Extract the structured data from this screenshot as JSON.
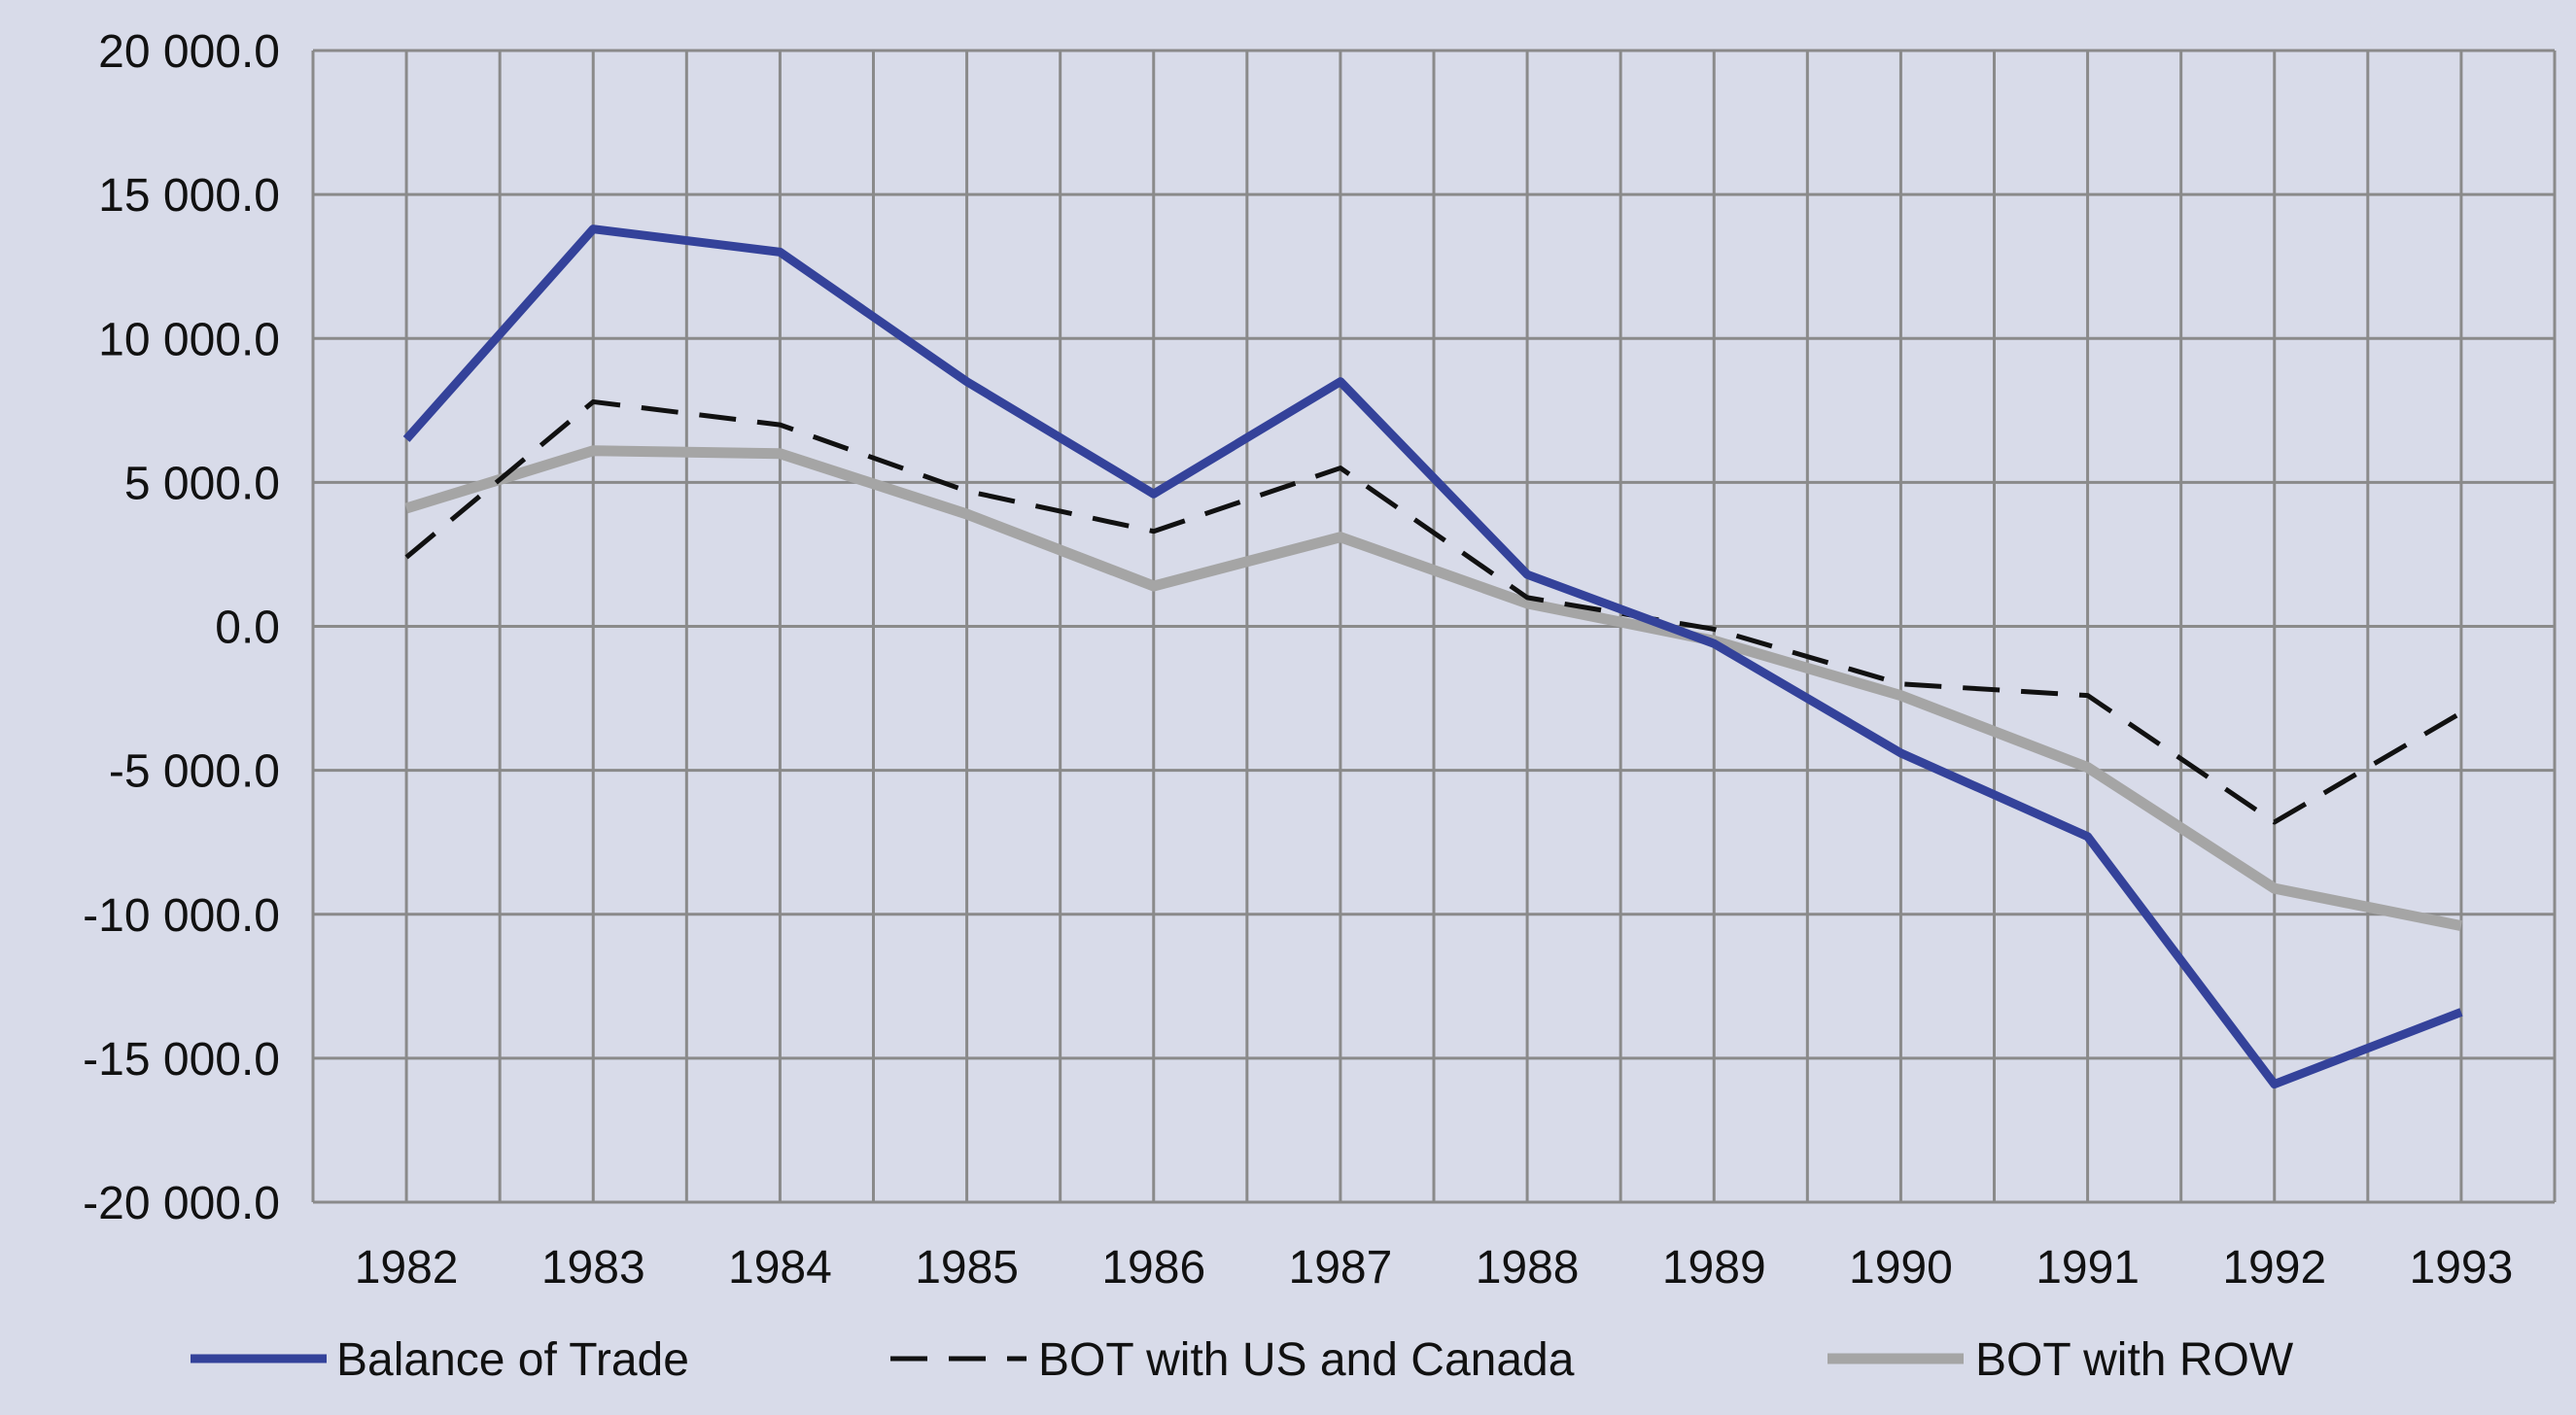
{
  "chart_data": {
    "type": "line",
    "title": "",
    "xlabel": "",
    "ylabel": "",
    "categories": [
      "1982",
      "1983",
      "1984",
      "1985",
      "1986",
      "1987",
      "1988",
      "1989",
      "1990",
      "1991",
      "1992",
      "1993"
    ],
    "ylim": [
      -20000,
      20000
    ],
    "yticks": [
      20000,
      15000,
      10000,
      5000,
      0,
      -5000,
      -10000,
      -15000,
      -20000
    ],
    "ytick_labels": [
      "20 000.0",
      "15 000.0",
      "10 000.0",
      "5 000.0",
      "0.0",
      "-5 000.0",
      "-10 000.0",
      "-15 000.0",
      "-20 000.0"
    ],
    "grid": true,
    "legend_position": "bottom",
    "series": [
      {
        "name": "Balance of Trade",
        "color": "#34429a",
        "style": "solid",
        "values": [
          6500,
          13800,
          13000,
          8500,
          4600,
          8500,
          1800,
          -600,
          -4400,
          -7300,
          -15900,
          -13400
        ]
      },
      {
        "name": "BOT with US and Canada",
        "color": "#111111",
        "style": "dashed",
        "values": [
          2400,
          7800,
          7000,
          4700,
          3300,
          5500,
          1000,
          -100,
          -2000,
          -2400,
          -6800,
          -3000
        ]
      },
      {
        "name": "BOT with ROW",
        "color": "#a5a5a5",
        "style": "solid",
        "values": [
          4100,
          6100,
          6000,
          3900,
          1400,
          3100,
          800,
          -500,
          -2400,
          -4900,
          -9100,
          -10400
        ]
      }
    ]
  }
}
